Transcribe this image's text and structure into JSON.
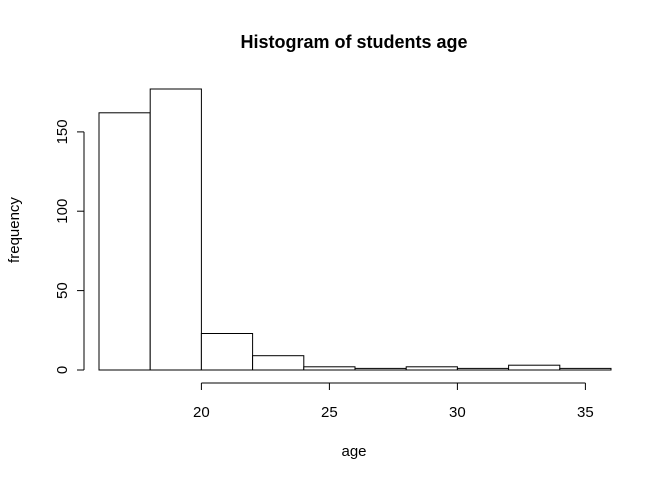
{
  "chart_data": {
    "type": "bar",
    "title": "Histogram of students age",
    "xlabel": "age",
    "ylabel": "frequency",
    "bins": [
      {
        "start": 16,
        "end": 18,
        "count": 162
      },
      {
        "start": 18,
        "end": 20,
        "count": 177
      },
      {
        "start": 20,
        "end": 22,
        "count": 23
      },
      {
        "start": 22,
        "end": 24,
        "count": 9
      },
      {
        "start": 24,
        "end": 26,
        "count": 2
      },
      {
        "start": 26,
        "end": 28,
        "count": 1
      },
      {
        "start": 28,
        "end": 30,
        "count": 2
      },
      {
        "start": 30,
        "end": 32,
        "count": 1
      },
      {
        "start": 32,
        "end": 34,
        "count": 3
      },
      {
        "start": 34,
        "end": 36,
        "count": 1
      }
    ],
    "xticks": [
      20,
      25,
      30,
      35
    ],
    "yticks": [
      0,
      50,
      100,
      150
    ],
    "xlim": [
      16,
      36
    ],
    "ylim": [
      0,
      177
    ],
    "grid": false,
    "legend": "none",
    "bar_fill": "#ffffff",
    "bar_stroke": "#000000"
  }
}
